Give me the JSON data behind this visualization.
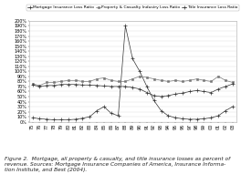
{
  "years": [
    1975,
    1976,
    1977,
    1978,
    1979,
    1980,
    1981,
    1982,
    1983,
    1984,
    1985,
    1986,
    1987,
    1988,
    1989,
    1990,
    1991,
    1992,
    1993,
    1994,
    1995,
    1996,
    1997,
    1998,
    1999,
    2000,
    2001,
    2002,
    2003
  ],
  "mortgage_loss": [
    8,
    6,
    5,
    4,
    4,
    4,
    5,
    7,
    10,
    22,
    30,
    17,
    12,
    190,
    125,
    100,
    70,
    42,
    22,
    12,
    8,
    6,
    5,
    5,
    6,
    8,
    12,
    22,
    30
  ],
  "pc_loss": [
    75,
    72,
    78,
    78,
    80,
    82,
    82,
    80,
    80,
    85,
    87,
    82,
    80,
    80,
    85,
    90,
    88,
    85,
    82,
    80,
    82,
    80,
    82,
    85,
    82,
    80,
    90,
    82,
    78
  ],
  "title_loss": [
    73,
    70,
    72,
    72,
    74,
    74,
    74,
    73,
    73,
    72,
    71,
    70,
    70,
    70,
    68,
    65,
    58,
    52,
    50,
    52,
    55,
    57,
    60,
    62,
    60,
    58,
    65,
    70,
    75
  ],
  "ylim": [
    0,
    200
  ],
  "yticks": [
    0,
    10,
    20,
    30,
    40,
    50,
    60,
    70,
    80,
    90,
    100,
    110,
    120,
    130,
    140,
    150,
    160,
    170,
    180,
    190,
    200
  ],
  "ytick_labels": [
    "0%",
    "10%",
    "20%",
    "30%",
    "40%",
    "50%",
    "60%",
    "70%",
    "80%",
    "90%",
    "100%",
    "110%",
    "120%",
    "130%",
    "140%",
    "150%",
    "160%",
    "170%",
    "180%",
    "190%",
    "200%"
  ],
  "legend_labels": [
    "Mortgage Insurance Loss Ratio",
    "Property & Casualty Industry Loss Ratio",
    "Title Insurance Loss Ratio"
  ],
  "line_colors": [
    "#333333",
    "#777777",
    "#333333"
  ],
  "markers": [
    "+",
    "s",
    "+"
  ],
  "marker_sizes": [
    3,
    2,
    3
  ],
  "bg_color": "#ffffff",
  "grid_color": "#dddddd",
  "caption": "Figure 2.  Mortgage, all property & casualty, and title insurance losses as percent of\nrevenue. Sources: Mortgage Insurance Companies of America, Insurance Informa-\ntion Institute, and Best (2004).",
  "tick_fontsize": 3.5,
  "legend_fontsize": 3.2,
  "caption_fontsize": 4.2
}
